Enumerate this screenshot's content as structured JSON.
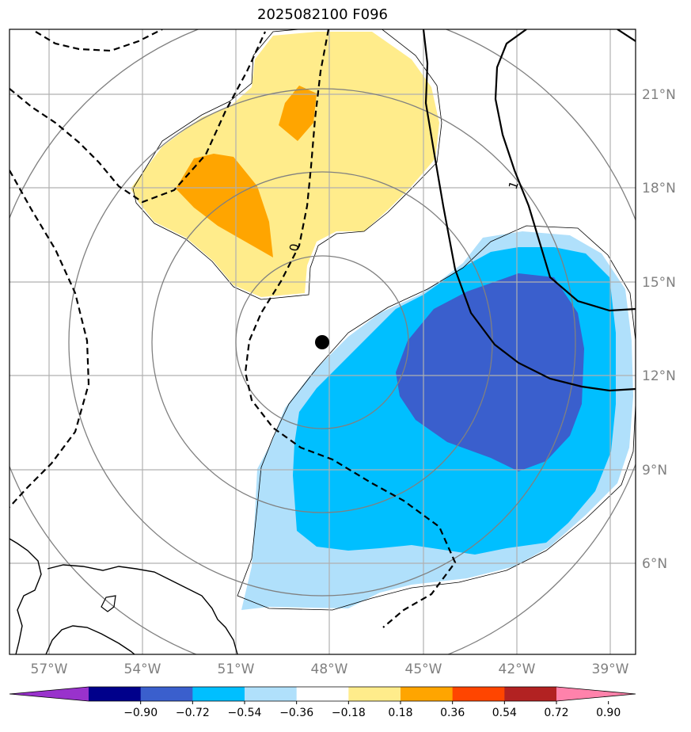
{
  "title": "2025082100 F096",
  "lon_labels": [
    "57°W",
    "54°W",
    "51°W",
    "48°W",
    "45°W",
    "42°W",
    "39°W"
  ],
  "lat_labels": [
    "21°N",
    "18°N",
    "15°N",
    "12°N",
    "9°N",
    "6°N"
  ],
  "colorbar": {
    "ticks": [
      "−0.90",
      "−0.72",
      "−0.54",
      "−0.36",
      "−0.18",
      "0.18",
      "0.36",
      "0.54",
      "0.72",
      "0.90"
    ],
    "colors": [
      "#9932cc",
      "#00008b",
      "#3a5fcd",
      "#00bfff",
      "#b0e0fb",
      "#ffffff",
      "#ffec8b",
      "#ffa500",
      "#ff4500",
      "#b22222",
      "#ff82ab"
    ]
  },
  "contour_labels": {
    "zero": "0",
    "one": "1"
  },
  "fill_colors": {
    "light_yellow": "#ffec8b",
    "orange": "#ffa500",
    "light_blue": "#b0e0fb",
    "cyan": "#00bfff",
    "blue": "#3a5fcd"
  },
  "center_marker": "storm-center-dot"
}
